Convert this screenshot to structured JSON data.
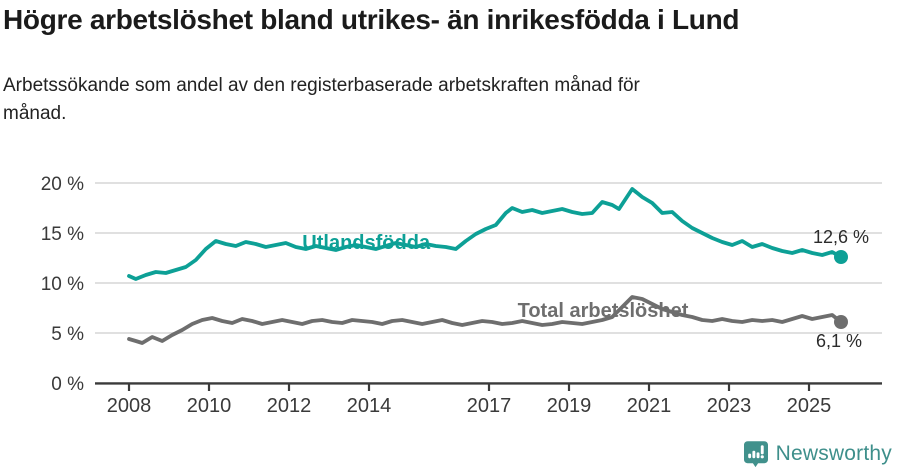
{
  "chart_data": {
    "type": "line",
    "title": "Högre arbetslöshet bland utrikes- än inrikesfödda i Lund",
    "subtitle": "Arbetssökande som andel av den registerbaserade arbetskraften månad för månad.",
    "subtitle_lines": [
      "Arbetssökande som andel av den registerbaserade arbetskraften månad för",
      "månad."
    ],
    "unit": "%",
    "xlabel": "",
    "ylabel": "",
    "ylim": [
      0,
      21
    ],
    "x_range_years": [
      2008,
      2025.8
    ],
    "grid": "horizontal",
    "legend_position": "inline-labels",
    "y_ticks": [
      {
        "label": "0 %",
        "value": 0
      },
      {
        "label": "5 %",
        "value": 5
      },
      {
        "label": "10 %",
        "value": 10
      },
      {
        "label": "15 %",
        "value": 15
      },
      {
        "label": "20 %",
        "value": 20
      }
    ],
    "x_ticks": [
      {
        "label": "2008",
        "year": 2008
      },
      {
        "label": "2010",
        "year": 2010
      },
      {
        "label": "2012",
        "year": 2012
      },
      {
        "label": "2014",
        "year": 2014
      },
      {
        "label": "2017",
        "year": 2017
      },
      {
        "label": "2019",
        "year": 2019
      },
      {
        "label": "2021",
        "year": 2021
      },
      {
        "label": "2023",
        "year": 2023
      },
      {
        "label": "2025",
        "year": 2025
      }
    ],
    "series": [
      {
        "name": "Utlandsfödda",
        "color": "#0da096",
        "end_label": "12,6 %",
        "end_value": 12.6,
        "label_anchor": {
          "year": 2013.93,
          "value": 14.1
        },
        "points": [
          [
            2008.0,
            10.7
          ],
          [
            2008.17,
            10.4
          ],
          [
            2008.42,
            10.8
          ],
          [
            2008.67,
            11.1
          ],
          [
            2008.92,
            11.0
          ],
          [
            2009.17,
            11.3
          ],
          [
            2009.42,
            11.6
          ],
          [
            2009.67,
            12.3
          ],
          [
            2009.92,
            13.4
          ],
          [
            2010.17,
            14.2
          ],
          [
            2010.42,
            13.9
          ],
          [
            2010.67,
            13.7
          ],
          [
            2010.92,
            14.1
          ],
          [
            2011.17,
            13.9
          ],
          [
            2011.42,
            13.6
          ],
          [
            2011.67,
            13.8
          ],
          [
            2011.92,
            14.0
          ],
          [
            2012.17,
            13.6
          ],
          [
            2012.42,
            13.4
          ],
          [
            2012.67,
            13.7
          ],
          [
            2012.92,
            13.5
          ],
          [
            2013.17,
            13.3
          ],
          [
            2013.42,
            13.6
          ],
          [
            2013.67,
            13.8
          ],
          [
            2013.92,
            13.6
          ],
          [
            2014.17,
            13.4
          ],
          [
            2014.42,
            13.7
          ],
          [
            2014.67,
            14.0
          ],
          [
            2014.92,
            13.8
          ],
          [
            2015.17,
            13.6
          ],
          [
            2015.42,
            13.9
          ],
          [
            2015.67,
            13.7
          ],
          [
            2015.92,
            13.6
          ],
          [
            2016.17,
            13.4
          ],
          [
            2016.42,
            14.2
          ],
          [
            2016.67,
            14.9
          ],
          [
            2016.92,
            15.4
          ],
          [
            2017.17,
            15.8
          ],
          [
            2017.42,
            17.0
          ],
          [
            2017.58,
            17.5
          ],
          [
            2017.83,
            17.1
          ],
          [
            2018.08,
            17.3
          ],
          [
            2018.33,
            17.0
          ],
          [
            2018.58,
            17.2
          ],
          [
            2018.83,
            17.4
          ],
          [
            2019.08,
            17.1
          ],
          [
            2019.33,
            16.9
          ],
          [
            2019.58,
            17.0
          ],
          [
            2019.83,
            18.1
          ],
          [
            2020.08,
            17.8
          ],
          [
            2020.25,
            17.4
          ],
          [
            2020.58,
            19.4
          ],
          [
            2020.83,
            18.6
          ],
          [
            2021.08,
            18.0
          ],
          [
            2021.33,
            17.0
          ],
          [
            2021.58,
            17.1
          ],
          [
            2021.83,
            16.2
          ],
          [
            2022.08,
            15.5
          ],
          [
            2022.33,
            15.0
          ],
          [
            2022.58,
            14.5
          ],
          [
            2022.83,
            14.1
          ],
          [
            2023.08,
            13.8
          ],
          [
            2023.33,
            14.2
          ],
          [
            2023.58,
            13.6
          ],
          [
            2023.83,
            13.9
          ],
          [
            2024.08,
            13.5
          ],
          [
            2024.33,
            13.2
          ],
          [
            2024.58,
            13.0
          ],
          [
            2024.83,
            13.3
          ],
          [
            2025.08,
            13.0
          ],
          [
            2025.33,
            12.8
          ],
          [
            2025.58,
            13.1
          ],
          [
            2025.8,
            12.6
          ]
        ]
      },
      {
        "name": "Total arbetslöshet",
        "color": "#6e6e6e",
        "end_label": "6,1 %",
        "end_value": 6.1,
        "label_anchor": {
          "year": 2019.85,
          "value": 7.3
        },
        "points": [
          [
            2008.0,
            4.4
          ],
          [
            2008.17,
            4.2
          ],
          [
            2008.33,
            4.0
          ],
          [
            2008.58,
            4.6
          ],
          [
            2008.83,
            4.2
          ],
          [
            2009.08,
            4.8
          ],
          [
            2009.33,
            5.3
          ],
          [
            2009.58,
            5.9
          ],
          [
            2009.83,
            6.3
          ],
          [
            2010.08,
            6.5
          ],
          [
            2010.33,
            6.2
          ],
          [
            2010.58,
            6.0
          ],
          [
            2010.83,
            6.4
          ],
          [
            2011.08,
            6.2
          ],
          [
            2011.33,
            5.9
          ],
          [
            2011.58,
            6.1
          ],
          [
            2011.83,
            6.3
          ],
          [
            2012.08,
            6.1
          ],
          [
            2012.33,
            5.9
          ],
          [
            2012.58,
            6.2
          ],
          [
            2012.83,
            6.3
          ],
          [
            2013.08,
            6.1
          ],
          [
            2013.33,
            6.0
          ],
          [
            2013.58,
            6.3
          ],
          [
            2013.83,
            6.2
          ],
          [
            2014.08,
            6.1
          ],
          [
            2014.33,
            5.9
          ],
          [
            2014.58,
            6.2
          ],
          [
            2014.83,
            6.3
          ],
          [
            2015.08,
            6.1
          ],
          [
            2015.33,
            5.9
          ],
          [
            2015.58,
            6.1
          ],
          [
            2015.83,
            6.3
          ],
          [
            2016.08,
            6.0
          ],
          [
            2016.33,
            5.8
          ],
          [
            2016.58,
            6.0
          ],
          [
            2016.83,
            6.2
          ],
          [
            2017.08,
            6.1
          ],
          [
            2017.33,
            5.9
          ],
          [
            2017.58,
            6.0
          ],
          [
            2017.83,
            6.2
          ],
          [
            2018.08,
            6.0
          ],
          [
            2018.33,
            5.8
          ],
          [
            2018.58,
            5.9
          ],
          [
            2018.83,
            6.1
          ],
          [
            2019.08,
            6.0
          ],
          [
            2019.33,
            5.9
          ],
          [
            2019.58,
            6.1
          ],
          [
            2019.83,
            6.3
          ],
          [
            2020.08,
            6.6
          ],
          [
            2020.33,
            7.6
          ],
          [
            2020.58,
            8.6
          ],
          [
            2020.83,
            8.4
          ],
          [
            2021.08,
            7.9
          ],
          [
            2021.33,
            7.4
          ],
          [
            2021.58,
            7.1
          ],
          [
            2021.83,
            6.8
          ],
          [
            2022.08,
            6.6
          ],
          [
            2022.33,
            6.3
          ],
          [
            2022.58,
            6.2
          ],
          [
            2022.83,
            6.4
          ],
          [
            2023.08,
            6.2
          ],
          [
            2023.33,
            6.1
          ],
          [
            2023.58,
            6.3
          ],
          [
            2023.83,
            6.2
          ],
          [
            2024.08,
            6.3
          ],
          [
            2024.33,
            6.1
          ],
          [
            2024.58,
            6.4
          ],
          [
            2024.83,
            6.7
          ],
          [
            2025.08,
            6.4
          ],
          [
            2025.33,
            6.6
          ],
          [
            2025.58,
            6.8
          ],
          [
            2025.8,
            6.1
          ]
        ]
      }
    ]
  },
  "footer": {
    "brand": "Newsworthy",
    "logo_icon": "newsworthy-speech-bubble-bar-chart-icon",
    "brand_color": "#3e8f8b"
  }
}
